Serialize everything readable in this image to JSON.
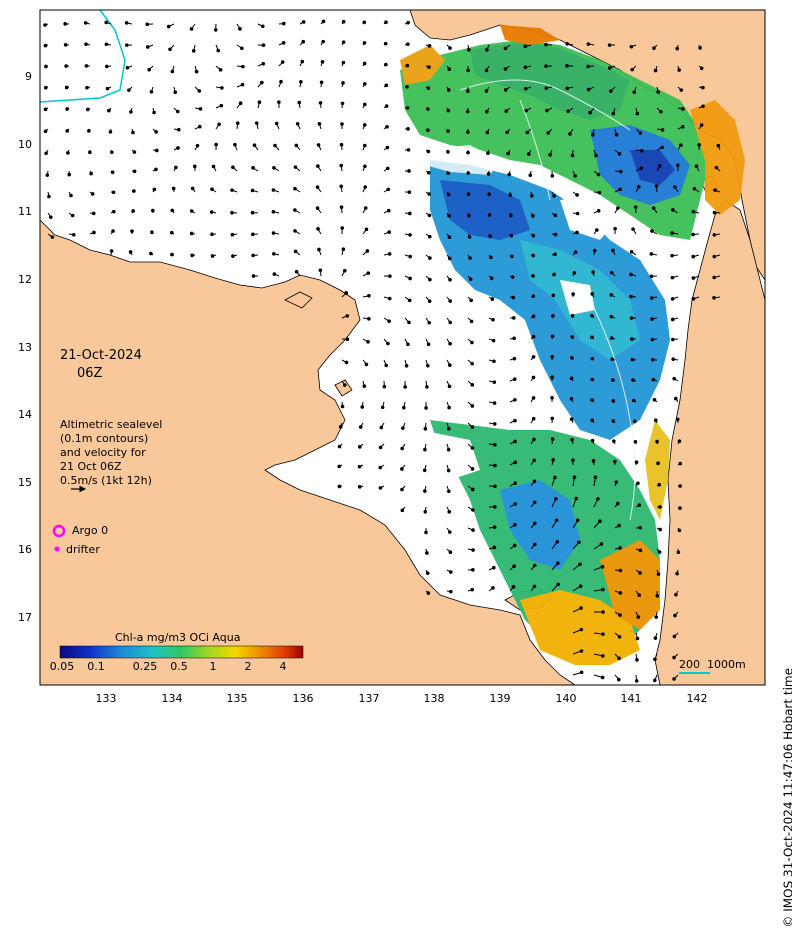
{
  "map": {
    "date_line1": "21-Oct-2024",
    "date_line2": "06Z",
    "legend_lines": [
      "Altimetric sealevel",
      "(0.1m contours)",
      "and velocity for",
      "21 Oct 06Z",
      "0.5m/s (1kt 12h)"
    ],
    "argo_label": "Argo 0",
    "drifter_label": "drifter",
    "colorbar_title": "Chl-a mg/m3 OCi Aqua",
    "colorbar_ticks": [
      "0.05",
      "0.1",
      "0.25",
      "0.5",
      "1",
      "2",
      "4"
    ],
    "scale_label": "200  1000m",
    "credit": "© IMOS 31-Oct-2024 11:47:06 Hobart time",
    "y_ticks": [
      "9",
      "10",
      "11",
      "12",
      "13",
      "14",
      "15",
      "16",
      "17"
    ],
    "x_ticks": [
      "133",
      "134",
      "135",
      "136",
      "137",
      "138",
      "139",
      "140",
      "141",
      "142"
    ],
    "colors": {
      "land": "#f8c89b",
      "sea": "#ffffff",
      "coast": "#000000",
      "argo": "#ff00ff",
      "drifter": "#ff00ff",
      "contour": "#00c8c8"
    }
  }
}
